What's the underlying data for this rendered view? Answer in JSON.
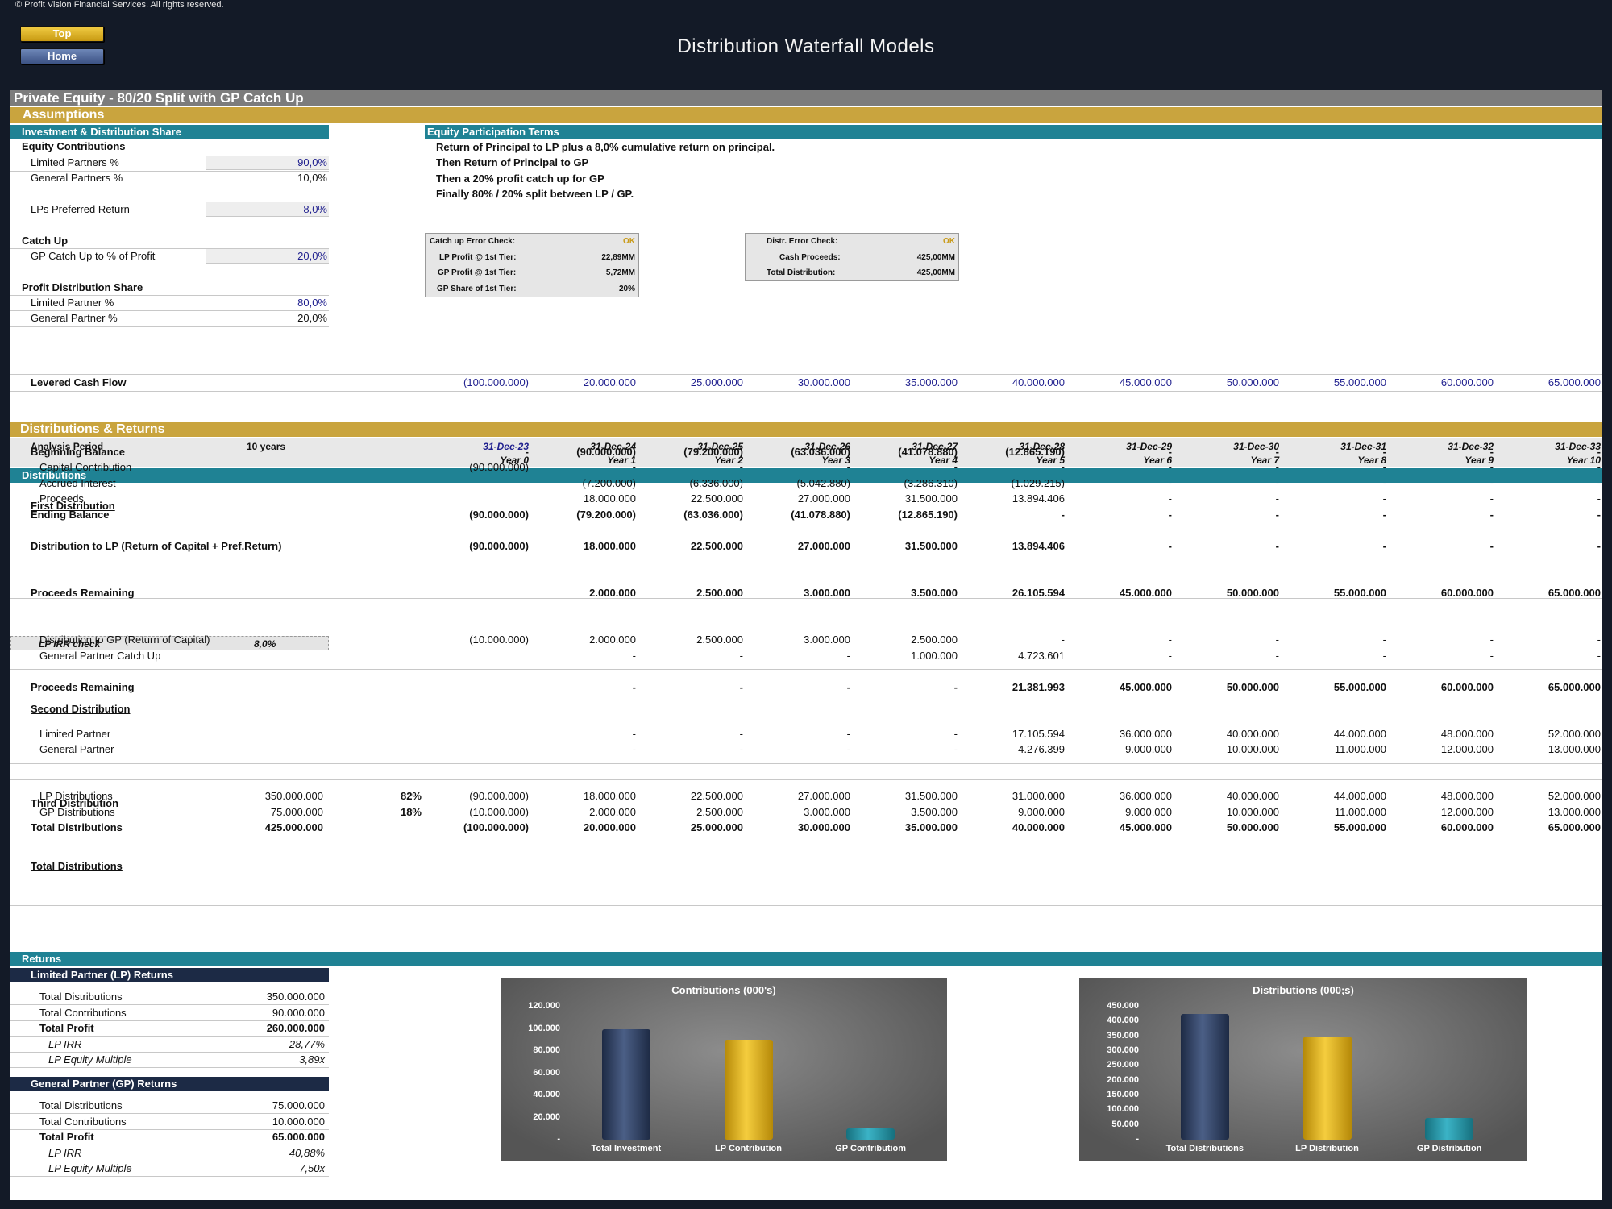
{
  "copyright": "© Profit Vision Financial Services. All rights reserved.",
  "nav": {
    "top": "Top",
    "home": "Home"
  },
  "doc_title": "Distribution Waterfall Models",
  "sheet_title": "Private Equity - 80/20 Split with GP Catch Up",
  "assumptions": {
    "band": "Assumptions",
    "inv_header": "Investment & Distribution Share",
    "equity_contrib": "Equity Contributions",
    "lp_pct_label": "Limited Partners %",
    "lp_pct": "90,0%",
    "gp_pct_label": "General Partners %",
    "gp_pct": "10,0%",
    "pref_label": "LPs Preferred Return",
    "pref": "8,0%",
    "catchup": "Catch Up",
    "gp_catchup_label": "GP Catch Up to % of Profit",
    "gp_catchup": "20,0%",
    "profit_share": "Profit Distribution Share",
    "lp_share_label": "Limited Partner %",
    "lp_share": "80,0%",
    "gp_share_label": "General Partner %",
    "gp_share": "20,0%",
    "terms_header": "Equity Participation Terms",
    "terms": [
      "Return of Principal to LP plus a 8,0% cumulative return on principal.",
      "Then Return of Principal to GP",
      "Then a 20% profit catch up for GP",
      "Finally 80% / 20% split between LP / GP."
    ],
    "check1": [
      {
        "label": "Catch up Error Check:",
        "value": "OK"
      },
      {
        "label": "LP Profit @ 1st Tier:",
        "value": "22,89MM"
      },
      {
        "label": "GP Profit @ 1st Tier:",
        "value": "5,72MM"
      },
      {
        "label": "GP Share of 1st Tier:",
        "value": "20%"
      }
    ],
    "check2": [
      {
        "label": "Distr. Error Check:",
        "value": "OK"
      },
      {
        "label": "Cash Proceeds:",
        "value": "425,00MM"
      },
      {
        "label": "Total Distribution:",
        "value": "425,00MM"
      }
    ],
    "levered_label": "Levered Cash Flow",
    "levered": [
      "(100.000.000)",
      "20.000.000",
      "25.000.000",
      "30.000.000",
      "35.000.000",
      "40.000.000",
      "45.000.000",
      "50.000.000",
      "55.000.000",
      "60.000.000",
      "65.000.000"
    ]
  },
  "dist": {
    "band": "Distributions & Returns",
    "analysis_label": "Analysis Period",
    "analysis_val": "10 years",
    "dates": [
      "31-Dec-23",
      "31-Dec-24",
      "31-Dec-25",
      "31-Dec-26",
      "31-Dec-27",
      "31-Dec-28",
      "31-Dec-29",
      "31-Dec-30",
      "31-Dec-31",
      "31-Dec-32",
      "31-Dec-33"
    ],
    "years": [
      "Year 0",
      "Year 1",
      "Year 2",
      "Year 3",
      "Year 4",
      "Year 5",
      "Year 6",
      "Year 7",
      "Year 8",
      "Year 9",
      "Year 10"
    ],
    "header": "Distributions",
    "first": "First Distribution",
    "rows": [
      {
        "y": 554,
        "label": "Beginning Balance",
        "bold": true,
        "ind": 25,
        "vals": [
          "-",
          "(90.000.000)",
          "(79.200.000)",
          "(63.036.000)",
          "(41.078.880)",
          "(12.865.190)",
          "-",
          "-",
          "-",
          "-",
          "-"
        ]
      },
      {
        "y": 573,
        "label": "Capital Contribution",
        "ind": 36,
        "vals": [
          "(90.000.000)",
          "-",
          "-",
          "-",
          "-",
          "-",
          "-",
          "-",
          "-",
          "-",
          "-"
        ]
      },
      {
        "y": 593,
        "label": "Accrued Interest",
        "ind": 36,
        "vals": [
          "",
          "(7.200.000)",
          "(6.336.000)",
          "(5.042.880)",
          "(3.286.310)",
          "(1.029.215)",
          "-",
          "-",
          "-",
          "-",
          "-"
        ]
      },
      {
        "y": 612,
        "label": "Proceeds",
        "ind": 36,
        "vals": [
          "",
          "18.000.000",
          "22.500.000",
          "27.000.000",
          "31.500.000",
          "13.894.406",
          "-",
          "-",
          "-",
          "-",
          "-"
        ]
      },
      {
        "y": 632,
        "label": "Ending Balance",
        "bold": true,
        "ind": 25,
        "vals": [
          "(90.000.000)",
          "(79.200.000)",
          "(63.036.000)",
          "(41.078.880)",
          "(12.865.190)",
          "-",
          "-",
          "-",
          "-",
          "-",
          "-"
        ]
      },
      {
        "y": 671,
        "label": "Distribution to LP (Return of Capital + Pref.Return)",
        "bold": true,
        "ind": 25,
        "vals": [
          "(90.000.000)",
          "18.000.000",
          "22.500.000",
          "27.000.000",
          "31.500.000",
          "13.894.406",
          "-",
          "-",
          "-",
          "-",
          "-"
        ]
      },
      {
        "y": 729,
        "label": "Proceeds Remaining",
        "bold": true,
        "ind": 25,
        "vals": [
          "",
          "2.000.000",
          "2.500.000",
          "3.000.000",
          "3.500.000",
          "26.105.594",
          "45.000.000",
          "50.000.000",
          "55.000.000",
          "60.000.000",
          "65.000.000"
        ]
      },
      {
        "y": 787,
        "label": "Distribution to GP (Return of Capital)",
        "ind": 36,
        "vals": [
          "(10.000.000)",
          "2.000.000",
          "2.500.000",
          "3.000.000",
          "2.500.000",
          "-",
          "-",
          "-",
          "-",
          "-",
          "-"
        ]
      },
      {
        "y": 807,
        "label": "General Partner Catch Up",
        "ind": 36,
        "vals": [
          "",
          "-",
          "-",
          "-",
          "1.000.000",
          "4.723.601",
          "-",
          "-",
          "-",
          "-",
          "-"
        ]
      },
      {
        "y": 846,
        "label": "Proceeds Remaining",
        "bold": true,
        "ind": 25,
        "vals": [
          "",
          "-",
          "-",
          "-",
          "-",
          "21.381.993",
          "45.000.000",
          "50.000.000",
          "55.000.000",
          "60.000.000",
          "65.000.000"
        ]
      },
      {
        "y": 904,
        "label": "Limited Partner",
        "ind": 36,
        "vals": [
          "",
          "-",
          "-",
          "-",
          "-",
          "17.105.594",
          "36.000.000",
          "40.000.000",
          "44.000.000",
          "48.000.000",
          "52.000.000"
        ]
      },
      {
        "y": 923,
        "label": "General Partner",
        "ind": 36,
        "vals": [
          "",
          "-",
          "-",
          "-",
          "-",
          "4.276.399",
          "9.000.000",
          "10.000.000",
          "11.000.000",
          "12.000.000",
          "13.000.000"
        ]
      },
      {
        "y": 981,
        "label": "LP Distributions",
        "ind": 36,
        "total": "350.000.000",
        "pct": "82%",
        "vals": [
          "(90.000.000)",
          "18.000.000",
          "22.500.000",
          "27.000.000",
          "31.500.000",
          "31.000.000",
          "36.000.000",
          "40.000.000",
          "44.000.000",
          "48.000.000",
          "52.000.000"
        ]
      },
      {
        "y": 1001,
        "label": "GP Distributions",
        "ind": 36,
        "total": "75.000.000",
        "pct": "18%",
        "vals": [
          "(10.000.000)",
          "2.000.000",
          "2.500.000",
          "3.000.000",
          "3.500.000",
          "9.000.000",
          "9.000.000",
          "10.000.000",
          "11.000.000",
          "12.000.000",
          "13.000.000"
        ]
      },
      {
        "y": 1020,
        "label": "Total Distributions",
        "bold": true,
        "ind": 25,
        "total": "425.000.000",
        "vals": [
          "(100.000.000)",
          "20.000.000",
          "25.000.000",
          "30.000.000",
          "35.000.000",
          "40.000.000",
          "45.000.000",
          "50.000.000",
          "55.000.000",
          "60.000.000",
          "65.000.000"
        ]
      }
    ],
    "irr_check_label": "LP IRR check",
    "irr_check_val": "8,0%",
    "second": "Second Distribution",
    "third": "Third Distribution",
    "totals": "Total Distributions"
  },
  "returns": {
    "header": "Returns",
    "lp": {
      "header": "Limited Partner (LP) Returns",
      "rows": [
        {
          "label": "Total Distributions",
          "val": "350.000.000"
        },
        {
          "label": "Total Contributions",
          "val": "90.000.000"
        },
        {
          "label": "Total Profit",
          "val": "260.000.000",
          "bold": true
        },
        {
          "label": "LP IRR",
          "val": "28,77%",
          "italic": true
        },
        {
          "label": "LP Equity Multiple",
          "val": "3,89x",
          "italic": true
        }
      ]
    },
    "gp": {
      "header": "General Partner (GP) Returns",
      "rows": [
        {
          "label": "Total Distributions",
          "val": "75.000.000"
        },
        {
          "label": "Total Contributions",
          "val": "10.000.000"
        },
        {
          "label": "Total Profit",
          "val": "65.000.000",
          "bold": true
        },
        {
          "label": "LP IRR",
          "val": "40,88%",
          "italic": true
        },
        {
          "label": "LP Equity Multiple",
          "val": "7,50x",
          "italic": true
        }
      ]
    }
  },
  "chart_data": [
    {
      "type": "bar",
      "title": "Contributions (000's)",
      "categories": [
        "Total Investment",
        "LP Contribution",
        "GP Contributiom"
      ],
      "values": [
        100000,
        90000,
        10000
      ],
      "ylim": [
        0,
        120000
      ],
      "yticks": [
        "-",
        "20.000",
        "40.000",
        "60.000",
        "80.000",
        "100.000",
        "120.000"
      ],
      "colors": [
        "#1d2a44",
        "#e0b021",
        "#2aa0b2"
      ]
    },
    {
      "type": "bar",
      "title": "Distributions (000;s)",
      "categories": [
        "Total Distributions",
        "LP Distribution",
        "GP Distribution"
      ],
      "values": [
        425000,
        350000,
        75000
      ],
      "ylim": [
        0,
        450000
      ],
      "yticks": [
        "-",
        "50.000",
        "100.000",
        "150.000",
        "200.000",
        "250.000",
        "300.000",
        "350.000",
        "400.000",
        "450.000"
      ],
      "colors": [
        "#1d2a44",
        "#e0b021",
        "#2aa0b2"
      ]
    }
  ]
}
